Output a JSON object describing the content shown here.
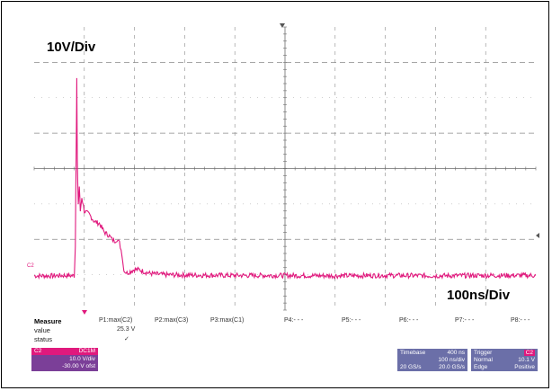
{
  "scope": {
    "volt_per_div": "10V/Div",
    "time_per_div": "100ns/Div",
    "channel_marker": "C2"
  },
  "measure": {
    "header": "Measure",
    "row_value": "value",
    "row_status": "status",
    "params": [
      {
        "label": "P1:max(C2)",
        "value": "25.3 V",
        "status": "✓"
      },
      {
        "label": "P2:max(C3)",
        "value": "",
        "status": ""
      },
      {
        "label": "P3:max(C1)",
        "value": "",
        "status": ""
      },
      {
        "label": "P4:- - -",
        "value": "",
        "status": ""
      },
      {
        "label": "P5:- - -",
        "value": "",
        "status": ""
      },
      {
        "label": "P6:- - -",
        "value": "",
        "status": ""
      },
      {
        "label": "P7:- - -",
        "value": "",
        "status": ""
      },
      {
        "label": "P8:- - -",
        "value": "",
        "status": ""
      }
    ]
  },
  "channel_box": {
    "name": "C2",
    "coupling": "DC1M",
    "scale": "10.0 V/div",
    "offset": "-30.00 V ofst"
  },
  "timebase_box": {
    "title": "Timebase",
    "delay": "400 ns",
    "tdiv": "100 ns/div",
    "sr": "20.0 GS/s",
    "points": "20 GS/s"
  },
  "trigger_box": {
    "title": "Trigger",
    "channel": "C2",
    "mode": "Normal",
    "level": "10.1 V",
    "type": "Edge",
    "slope": "Positive"
  },
  "colors": {
    "trace": "#e0197d",
    "grid": "#8a8a8a",
    "channel_box": "#7b3f98",
    "channel_head": "#e0197d",
    "info_box": "#6b6fa8"
  },
  "chart_data": {
    "type": "line",
    "title": "",
    "xlabel": "",
    "ylabel": "",
    "x_unit": "ns",
    "y_unit": "V",
    "xlim": [
      0,
      1000
    ],
    "ylim": [
      -40,
      40
    ],
    "series": [
      {
        "x": [
          0,
          20,
          40,
          60,
          80,
          82,
          84,
          85,
          86,
          88,
          90,
          92,
          95,
          100,
          110,
          120,
          130,
          140,
          150,
          155,
          160,
          165,
          170,
          175,
          178,
          180,
          185,
          190,
          200,
          210,
          220,
          230,
          240,
          260,
          300,
          400,
          500,
          600,
          700,
          800,
          900,
          1000
        ],
        "y": [
          -30.3,
          -30.3,
          -30.3,
          -30.2,
          -30.3,
          -22,
          10,
          25.3,
          2,
          -10,
          -5,
          -12,
          -8,
          -12,
          -13,
          -15,
          -15.5,
          -18,
          -19,
          -20,
          -20.5,
          -20,
          -21,
          -24,
          -28,
          -29,
          -29.5,
          -29.2,
          -28.5,
          -28.6,
          -29.2,
          -29.6,
          -29.8,
          -30.0,
          -30.1,
          -30.2,
          -30.2,
          -30.3,
          -30.2,
          -30.3,
          -30.2,
          -30.2
        ]
      }
    ],
    "divisions": {
      "x": 10,
      "y": 8
    }
  }
}
